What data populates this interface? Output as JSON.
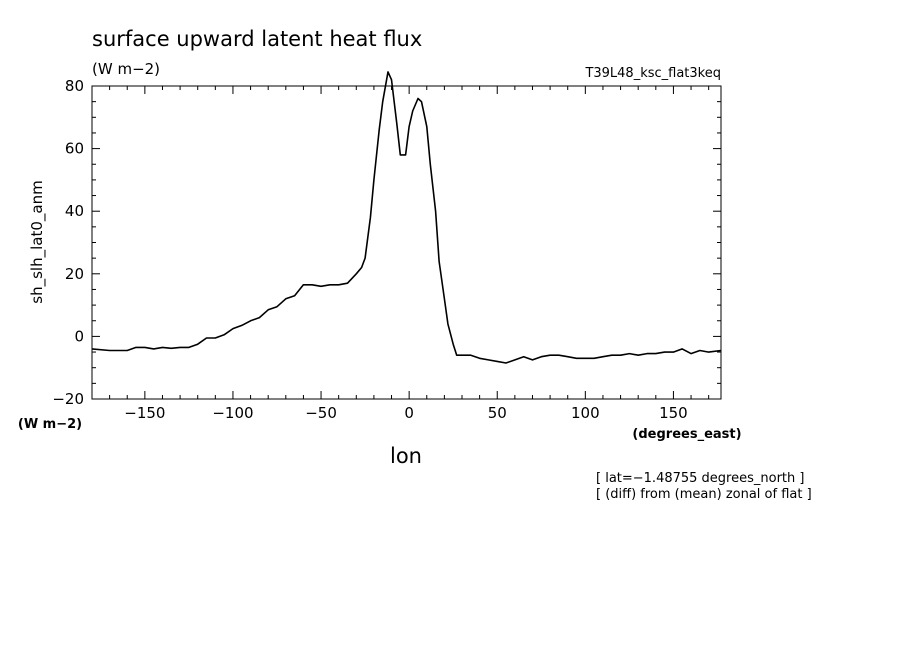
{
  "chart_data": {
    "type": "line",
    "title": "surface upward latent heat flux",
    "units_top": "(W m−2)",
    "experiment": "T39L48_ksc_flat3keq",
    "ylabel": "sh_slh_lat0_anm",
    "yunits": "(W m−2)",
    "xlabel": "lon",
    "xunits": "(degrees_east)",
    "notes": [
      "[ lat=−1.48755 degrees_north ]",
      "[ (diff) from (mean) zonal of flat ]"
    ],
    "xlim": [
      -180,
      177
    ],
    "ylim": [
      -20,
      80
    ],
    "x_ticks": [
      -150,
      -100,
      -50,
      0,
      50,
      100,
      150
    ],
    "x_tick_labels": [
      "−150",
      "−100",
      "−50",
      "0",
      "50",
      "100",
      "150"
    ],
    "y_ticks": [
      -20,
      0,
      20,
      40,
      60,
      80
    ],
    "y_tick_labels": [
      "−20",
      "0",
      "20",
      "40",
      "60",
      "80"
    ],
    "series": [
      {
        "x": [
          -180,
          -170,
          -160,
          -155,
          -150,
          -145,
          -140,
          -135,
          -130,
          -125,
          -120,
          -115,
          -110,
          -105,
          -100,
          -95,
          -90,
          -85,
          -80,
          -75,
          -70,
          -65,
          -60,
          -55,
          -50,
          -45,
          -40,
          -35,
          -30,
          -27,
          -25,
          -22,
          -20,
          -17,
          -15,
          -12,
          -10,
          -7,
          -5,
          -2,
          0,
          2,
          5,
          7,
          10,
          12,
          15,
          17,
          20,
          22,
          25,
          27,
          30,
          35,
          40,
          45,
          50,
          55,
          60,
          65,
          70,
          75,
          80,
          85,
          90,
          95,
          100,
          105,
          110,
          115,
          120,
          125,
          130,
          135,
          140,
          145,
          150,
          155,
          160,
          165,
          170,
          177
        ],
        "y": [
          -4.0,
          -4.5,
          -4.5,
          -3.5,
          -3.5,
          -4.0,
          -3.5,
          -3.8,
          -3.5,
          -3.5,
          -2.5,
          -0.5,
          -0.5,
          0.5,
          2.5,
          3.5,
          5.0,
          6.0,
          8.5,
          9.5,
          12,
          13,
          16.5,
          16.5,
          16,
          16.5,
          16.5,
          17,
          20,
          22,
          25,
          38,
          50,
          66,
          75,
          84.5,
          82,
          68,
          58,
          58,
          67,
          72,
          76,
          75,
          67,
          55,
          40,
          24,
          12,
          4,
          -2.5,
          -6,
          -6,
          -6,
          -7,
          -7.5,
          -8,
          -8.5,
          -7.5,
          -6.5,
          -7.5,
          -6.5,
          -6,
          -6,
          -6.5,
          -7,
          -7,
          -7,
          -6.5,
          -6,
          -6,
          -5.5,
          -6,
          -5.5,
          -5.5,
          -5,
          -5,
          -4,
          -5.5,
          -4.5,
          -5,
          -4.5
        ]
      }
    ]
  }
}
